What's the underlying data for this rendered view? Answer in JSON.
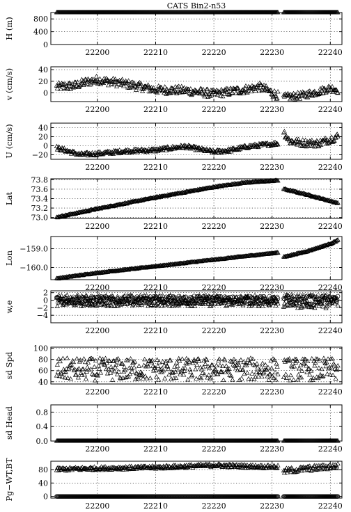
{
  "page": {
    "background": "#ffffff",
    "foreground": "#000000"
  },
  "chart_data": [
    {
      "type": "scatter",
      "title": "CATS  Bin2-n53",
      "ylabel": "H (m)",
      "xlim": [
        22192,
        22242
      ],
      "xticks": [
        22200,
        22210,
        22220,
        22230,
        22240
      ],
      "ylim": [
        0,
        1000
      ],
      "yticks": [
        0,
        400,
        800
      ],
      "ytick_labels": [
        "0",
        "400",
        "800"
      ],
      "grid": true,
      "series": [
        {
          "marker": "triangle",
          "segments": [
            {
              "x": [
                22193,
                22231
              ],
              "y": [
                1000,
                1000
              ],
              "noise": 0
            },
            {
              "x": [
                22232,
                22241.3
              ],
              "y": [
                1000,
                1000
              ],
              "noise": 0
            }
          ]
        }
      ]
    },
    {
      "type": "scatter",
      "ylabel": "v (cm/s)",
      "xlim": [
        22192,
        22242
      ],
      "xticks": [
        22200,
        22210,
        22220,
        22230,
        22240
      ],
      "ylim": [
        -15,
        45
      ],
      "yticks": [
        0,
        20,
        40
      ],
      "ytick_labels": [
        "0",
        "20",
        "40"
      ],
      "grid": true,
      "series": [
        {
          "marker": "triangle",
          "segments": [
            {
              "x": [
                22193,
                22196,
                22198,
                22200,
                22205,
                22210,
                22215,
                22220,
                22225,
                22228,
                22231
              ],
              "y": [
                10,
                12,
                18,
                22,
                15,
                5,
                4,
                -2,
                5,
                10,
                -5
              ],
              "noise": 7
            },
            {
              "x": [
                22232,
                22235,
                22238,
                22240,
                22241.3
              ],
              "y": [
                -8,
                -5,
                2,
                8,
                5
              ],
              "noise": 6
            }
          ]
        }
      ]
    },
    {
      "type": "scatter",
      "ylabel": "U (cm/s)",
      "xlim": [
        22192,
        22242
      ],
      "xticks": [
        22200,
        22210,
        22220,
        22230,
        22240
      ],
      "ylim": [
        -30,
        50
      ],
      "yticks": [
        -20,
        0,
        20,
        40
      ],
      "ytick_labels": [
        "−20",
        "0",
        "20",
        "40"
      ],
      "grid": true,
      "series": [
        {
          "marker": "triangle",
          "segments": [
            {
              "x": [
                22193,
                22197,
                22200,
                22205,
                22210,
                22215,
                22220,
                22223,
                22226,
                22231
              ],
              "y": [
                -5,
                -20,
                -18,
                -12,
                -10,
                -2,
                -14,
                -10,
                -2,
                5
              ],
              "noise": 4
            },
            {
              "x": [
                22232,
                22233,
                22235,
                22238,
                22241.3
              ],
              "y": [
                30,
                10,
                6,
                5,
                20
              ],
              "noise": 8
            }
          ]
        }
      ]
    },
    {
      "type": "scatter",
      "ylabel": "Lat",
      "xlim": [
        22192,
        22242
      ],
      "xticks": [
        22200,
        22210,
        22220,
        22230,
        22240
      ],
      "ylim": [
        72.98,
        73.82
      ],
      "yticks": [
        73.0,
        73.2,
        73.4,
        73.6,
        73.8
      ],
      "ytick_labels": [
        "73.0",
        "73.2",
        "73.4",
        "73.6",
        "73.8"
      ],
      "grid": true,
      "series": [
        {
          "marker": "triangle",
          "segments": [
            {
              "x": [
                22193,
                22200,
                22210,
                22220,
                22225,
                22231
              ],
              "y": [
                73.0,
                73.18,
                73.42,
                73.64,
                73.73,
                73.78
              ],
              "noise": 0.01
            },
            {
              "x": [
                22232,
                22236,
                22241.3
              ],
              "y": [
                73.6,
                73.48,
                73.3
              ],
              "noise": 0.01
            }
          ]
        }
      ]
    },
    {
      "type": "scatter",
      "ylabel": "Lon",
      "xlim": [
        22192,
        22242
      ],
      "xticks": [
        22200,
        22210,
        22220,
        22230,
        22240
      ],
      "ylim": [
        -160.65,
        -158.35
      ],
      "yticks": [
        -160.0,
        -159.0
      ],
      "ytick_labels": [
        "−160.0",
        "−159.0"
      ],
      "grid": true,
      "series": [
        {
          "marker": "triangle",
          "segments": [
            {
              "x": [
                22193,
                22200,
                22210,
                22220,
                22231
              ],
              "y": [
                -160.6,
                -160.3,
                -159.95,
                -159.6,
                -159.22
              ],
              "noise": 0.02
            },
            {
              "x": [
                22232,
                22236,
                22240,
                22241.3
              ],
              "y": [
                -159.45,
                -159.15,
                -158.75,
                -158.55
              ],
              "noise": 0.02
            }
          ]
        }
      ]
    },
    {
      "type": "scatter",
      "ylabel": "w,e",
      "xlim": [
        22192,
        22242
      ],
      "xticks": [
        22200,
        22210,
        22220,
        22230,
        22240
      ],
      "ylim": [
        -6,
        2.5
      ],
      "yticks": [
        -4,
        -2,
        0,
        2
      ],
      "ytick_labels": [
        "−4",
        "−2",
        "0",
        "2"
      ],
      "grid": true,
      "series": [
        {
          "marker": "triangle",
          "segments": [
            {
              "x": [
                22193,
                22231
              ],
              "y": [
                -0.2,
                -0.2
              ],
              "noise": 1.5
            },
            {
              "x": [
                22232,
                22241.3
              ],
              "y": [
                -0.4,
                -0.4
              ],
              "noise": 1.8
            }
          ]
        },
        {
          "marker": "circle",
          "segments": [
            {
              "x": [
                22193,
                22231
              ],
              "y": [
                0,
                0
              ],
              "noise": 1.1
            },
            {
              "x": [
                22232,
                22241.3
              ],
              "y": [
                0,
                0
              ],
              "noise": 1.3
            }
          ]
        }
      ]
    },
    {
      "type": "scatter",
      "ylabel": "sd Spd",
      "xlim": [
        22192,
        22242
      ],
      "xticks": [
        22200,
        22210,
        22220,
        22230,
        22240
      ],
      "ylim": [
        36,
        102
      ],
      "yticks": [
        40,
        60,
        80,
        100
      ],
      "ytick_labels": [
        "40",
        "60",
        "80",
        "100"
      ],
      "grid": true,
      "series": [
        {
          "marker": "triangle",
          "segments": [
            {
              "x": [
                22193,
                22231
              ],
              "y": [
                62,
                62
              ],
              "noise": 20
            },
            {
              "x": [
                22232,
                22241.3
              ],
              "y": [
                62,
                62
              ],
              "noise": 20
            }
          ]
        }
      ]
    },
    {
      "type": "scatter",
      "ylabel": "sd Head",
      "xlim": [
        22192,
        22242
      ],
      "xticks": [
        22200,
        22210,
        22220,
        22230,
        22240
      ],
      "ylim": [
        0,
        1.0
      ],
      "yticks": [
        0.0,
        0.4,
        0.8
      ],
      "ytick_labels": [
        "0.0",
        "0.4",
        "0.8"
      ],
      "grid": true,
      "series": [
        {
          "marker": "triangle",
          "segments": [
            {
              "x": [
                22193,
                22231
              ],
              "y": [
                0,
                0
              ],
              "noise": 0
            },
            {
              "x": [
                22232,
                22241.3
              ],
              "y": [
                0,
                0
              ],
              "noise": 0
            }
          ]
        }
      ]
    },
    {
      "type": "scatter",
      "ylabel": "Pg−WT,BT",
      "xlim": [
        22192,
        22242
      ],
      "xticks": [
        22200,
        22210,
        22220,
        22230,
        22240
      ],
      "ylim": [
        -5,
        105
      ],
      "yticks": [
        0,
        40,
        80
      ],
      "ytick_labels": [
        "0",
        "40",
        "80"
      ],
      "grid": true,
      "series": [
        {
          "marker": "triangle",
          "segments": [
            {
              "x": [
                22193,
                22200,
                22210,
                22220,
                22231
              ],
              "y": [
                80,
                83,
                86,
                92,
                87
              ],
              "noise": 5
            },
            {
              "x": [
                22232,
                22236,
                22241.3
              ],
              "y": [
                75,
                82,
                90
              ],
              "noise": 8
            }
          ]
        },
        {
          "marker": "circle",
          "segments": [
            {
              "x": [
                22193,
                22231
              ],
              "y": [
                0,
                0
              ],
              "noise": 0
            },
            {
              "x": [
                22232,
                22241.3
              ],
              "y": [
                0,
                0
              ],
              "noise": 0
            }
          ]
        }
      ]
    }
  ]
}
